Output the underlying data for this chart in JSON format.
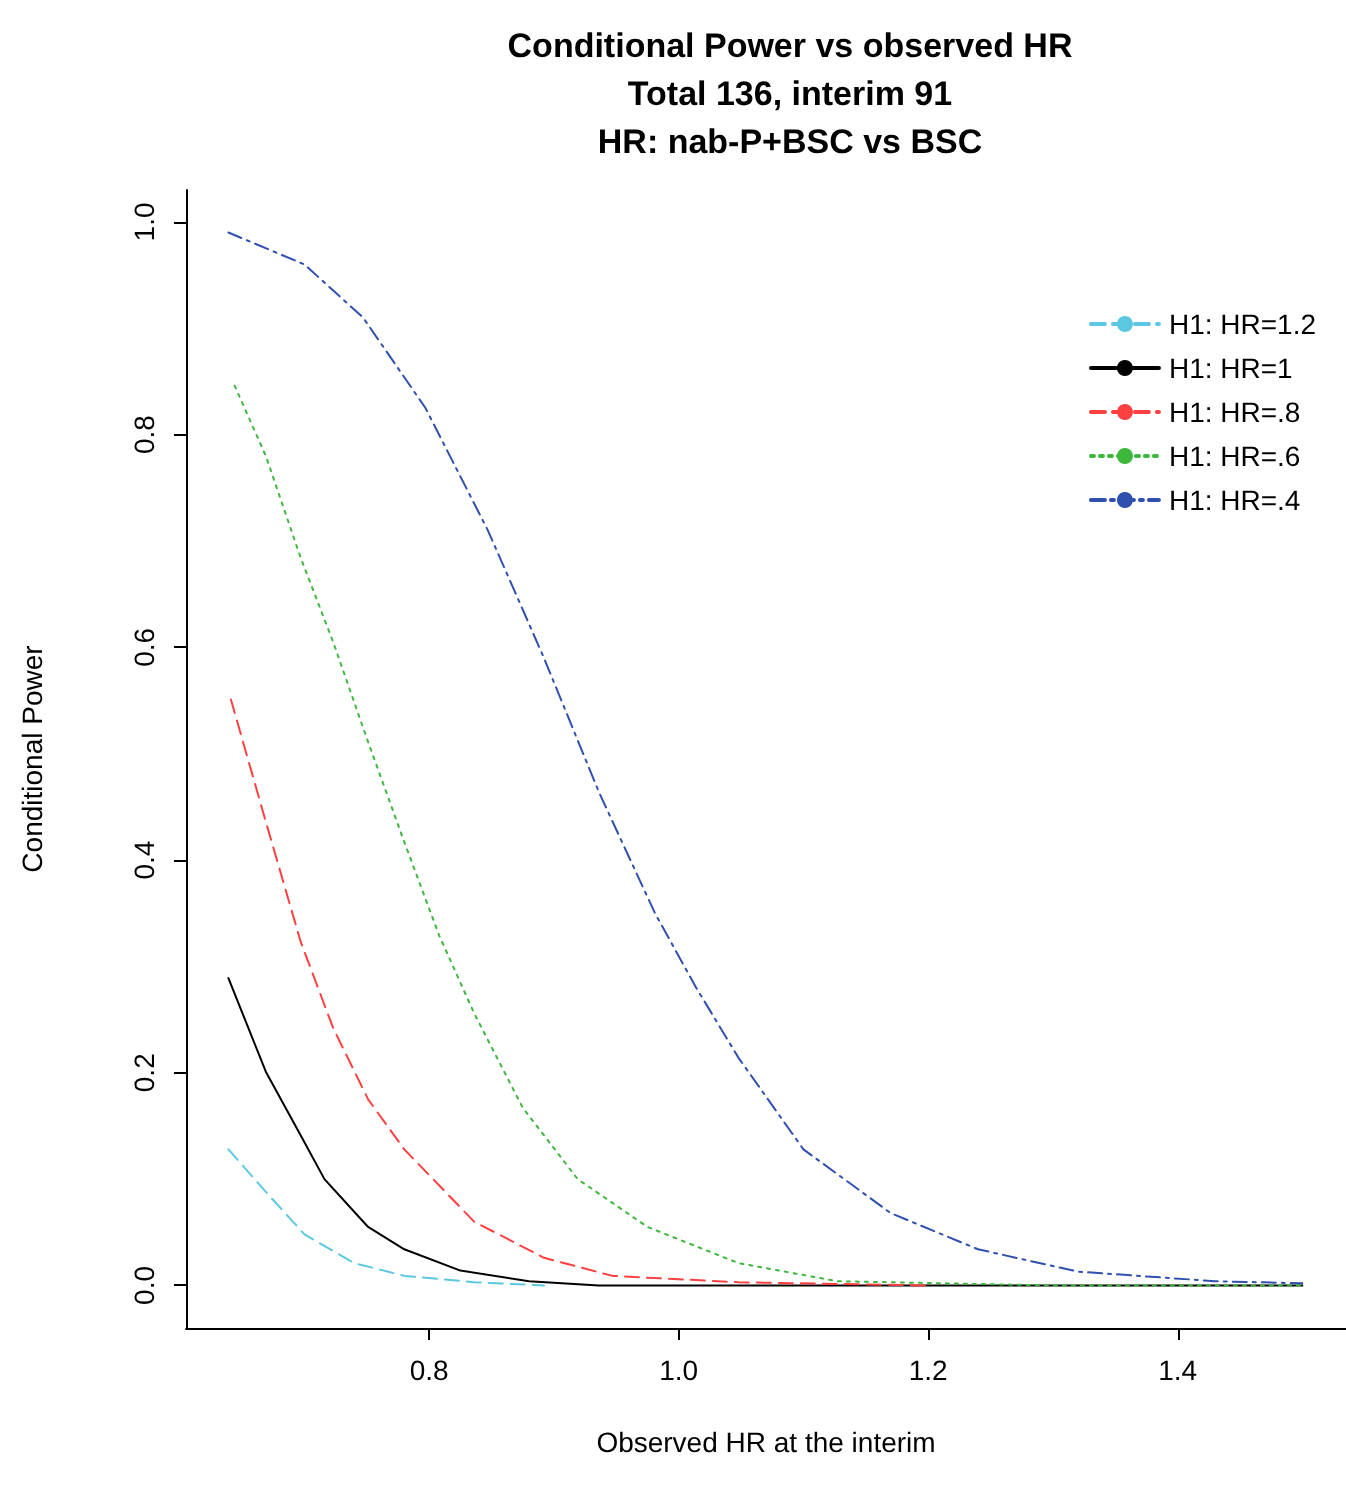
{
  "chart_data": {
    "type": "line",
    "title": "Conditional Power vs observed HR\nTotal 136, interim 91\nHR: nab-P+BSC vs BSC",
    "xlabel": "Observed HR at the interim",
    "ylabel": "Conditional Power",
    "xlim": [
      0.605,
      1.535
    ],
    "xticks": [
      0.8,
      {
        "value": 1,
        "label": "1.0"
      },
      1.2,
      1.4
    ],
    "ylim": [
      -0.04,
      1.03
    ],
    "yticks": [
      {
        "value": 0,
        "label": "0.0"
      },
      0.2,
      0.4,
      0.6,
      0.8,
      {
        "value": 1,
        "label": "1.0"
      }
    ],
    "grid": false,
    "legend": "top right",
    "marker": "none",
    "series": [
      {
        "name": "H1: HR=1.2",
        "color": "#5bc8e0",
        "line_style": "dashed",
        "x": [
          0.639,
          0.669,
          0.7,
          0.74,
          0.78,
          0.836,
          0.892
        ],
        "values": [
          0.128,
          0.088,
          0.048,
          0.021,
          0.009,
          0.003,
          0
        ]
      },
      {
        "name": "H1: HR=1",
        "color": "#000000",
        "line_style": "solid",
        "x": [
          0.639,
          0.669,
          0.697,
          0.716,
          0.751,
          0.78,
          0.825,
          0.88,
          0.936,
          1.2,
          1.5
        ],
        "values": [
          0.289,
          0.201,
          0.141,
          0.1,
          0.055,
          0.034,
          0.014,
          0.004,
          0,
          0,
          0
        ]
      },
      {
        "name": "H1: HR=.8",
        "color": "#ff4040",
        "line_style": "dashed",
        "x": [
          0.641,
          0.669,
          0.697,
          0.723,
          0.751,
          0.78,
          0.836,
          0.892,
          0.947,
          1.048,
          1.2
        ],
        "values": [
          0.551,
          0.436,
          0.323,
          0.242,
          0.175,
          0.128,
          0.06,
          0.026,
          0.009,
          0.003,
          0
        ]
      },
      {
        "name": "H1: HR=.6",
        "color": "#3cb83c",
        "line_style": "dotted",
        "x": [
          0.644,
          0.669,
          0.697,
          0.723,
          0.751,
          0.78,
          0.808,
          0.836,
          0.875,
          0.919,
          0.975,
          1.048,
          1.127,
          1.3,
          1.5
        ],
        "values": [
          0.846,
          0.78,
          0.684,
          0.605,
          0.511,
          0.417,
          0.329,
          0.256,
          0.167,
          0.1,
          0.055,
          0.021,
          0.004,
          0,
          0
        ]
      },
      {
        "name": "H1: HR=.4",
        "color": "#3050b0",
        "line_style": "dashdot",
        "x": [
          0.639,
          0.7,
          0.747,
          0.797,
          0.847,
          0.892,
          0.936,
          0.981,
          1.014,
          1.048,
          1.1,
          1.17,
          1.24,
          1.32,
          1.43,
          1.5
        ],
        "values": [
          0.99,
          0.96,
          0.91,
          0.825,
          0.71,
          0.59,
          0.464,
          0.35,
          0.28,
          0.214,
          0.128,
          0.068,
          0.034,
          0.013,
          0.004,
          0.002
        ]
      }
    ]
  }
}
